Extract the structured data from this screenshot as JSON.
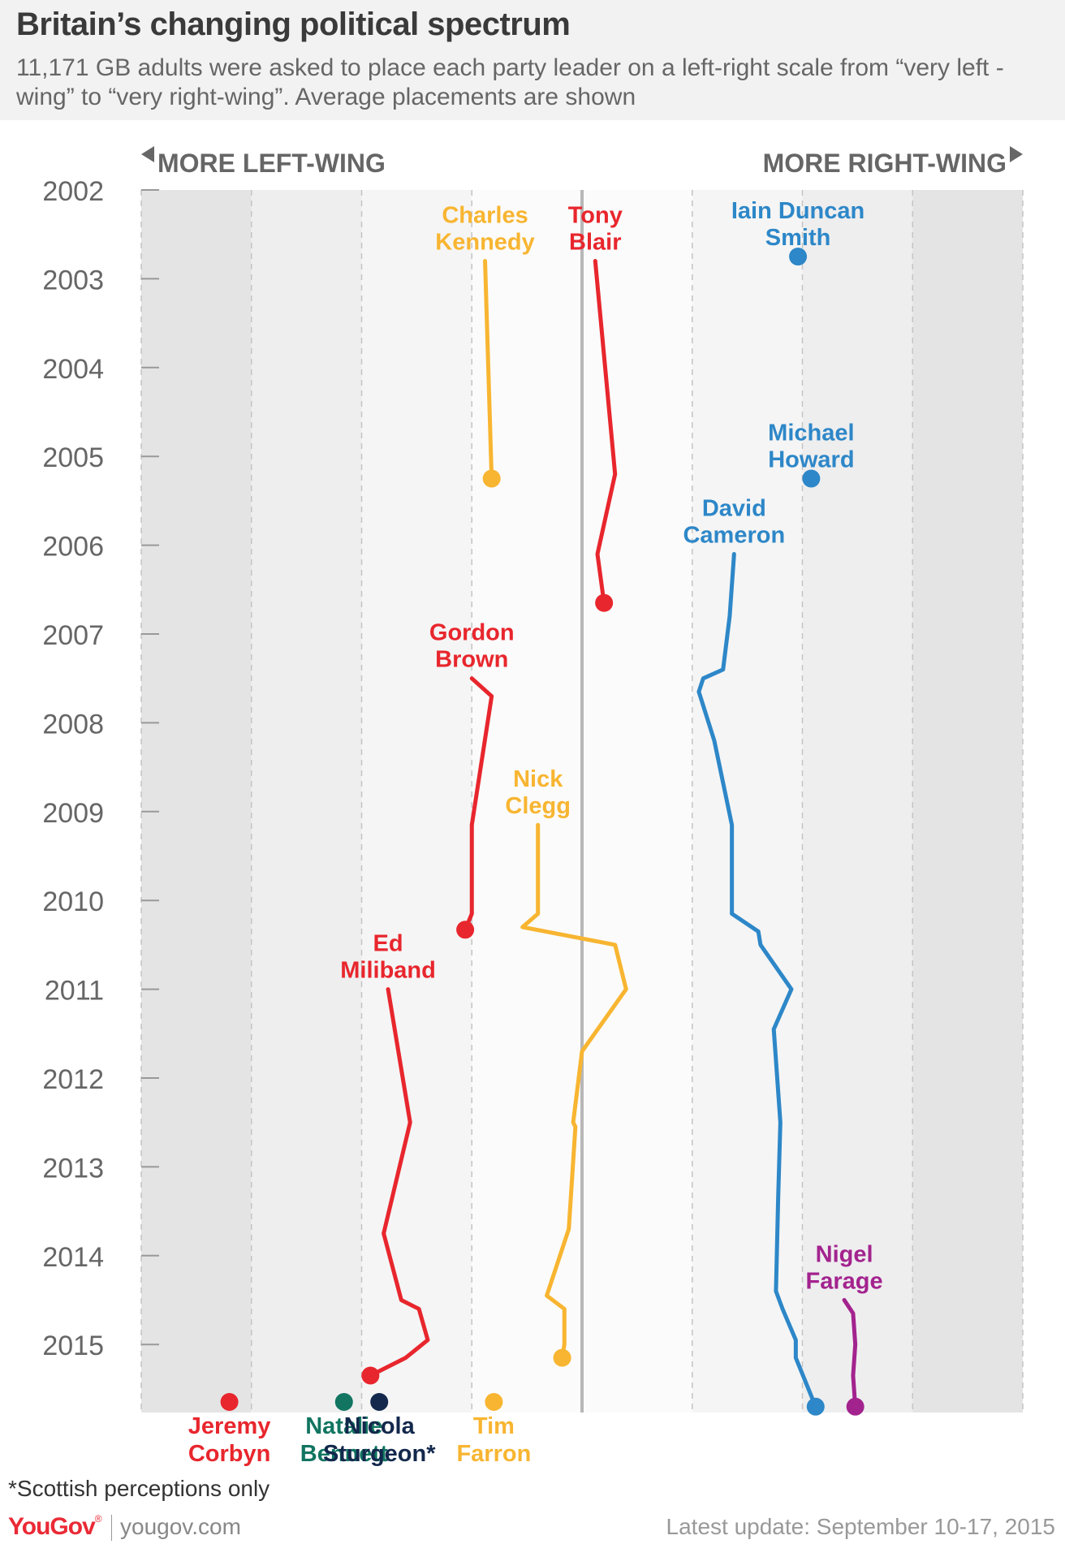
{
  "header": {
    "title": "Britain’s changing political spectrum",
    "subtitle": "11,171 GB adults were asked to place each party leader on a left-right scale from “very left -wing” to “very right-wing”. Average placements are shown"
  },
  "chart_data": {
    "type": "line",
    "left_label": "MORE LEFT-WING",
    "right_label": "MORE RIGHT-WING",
    "y_ticks": [
      "2002",
      "2003",
      "2004",
      "2005",
      "2006",
      "2007",
      "2008",
      "2009",
      "2010",
      "2011",
      "2012",
      "2013",
      "2014",
      "2015"
    ],
    "y_range": [
      2002,
      2015.8
    ],
    "x_range": [
      -100,
      100
    ],
    "x_unit": "left-right score (-100 = very left-wing, 0 = centre, 100 = very right-wing), estimated",
    "series": [
      {
        "name": "Tony Blair",
        "label_lines": [
          "Tony",
          "Blair"
        ],
        "color": "#e8262d",
        "points": [
          [
            3,
            2002.8
          ],
          [
            7.5,
            2005.2
          ],
          [
            3.5,
            2006.1
          ],
          [
            5,
            2006.65
          ]
        ]
      },
      {
        "name": "Charles Kennedy",
        "label_lines": [
          "Charles",
          "Kennedy"
        ],
        "color": "#f8b531",
        "points": [
          [
            -22,
            2002.8
          ],
          [
            -20.5,
            2005.25
          ]
        ]
      },
      {
        "name": "Iain Duncan Smith",
        "label_lines": [
          "Iain Duncan",
          "Smith"
        ],
        "color": "#2d87c8",
        "points": [
          [
            49,
            2002.75
          ]
        ]
      },
      {
        "name": "Michael Howard",
        "label_lines": [
          "Michael",
          "Howard"
        ],
        "color": "#2d87c8",
        "points": [
          [
            52,
            2005.25
          ]
        ]
      },
      {
        "name": "David Cameron",
        "label_lines": [
          "David",
          "Cameron"
        ],
        "color": "#2d87c8",
        "points": [
          [
            34.5,
            2006.1
          ],
          [
            33.5,
            2006.8
          ],
          [
            32,
            2007.4
          ],
          [
            27.5,
            2007.5
          ],
          [
            26.5,
            2007.65
          ],
          [
            30,
            2008.2
          ],
          [
            34,
            2009.15
          ],
          [
            34,
            2010.15
          ],
          [
            40,
            2010.35
          ],
          [
            40.5,
            2010.5
          ],
          [
            47.5,
            2011
          ],
          [
            43.5,
            2011.45
          ],
          [
            45,
            2012.5
          ],
          [
            44.5,
            2013.35
          ],
          [
            44,
            2014.4
          ],
          [
            45.5,
            2014.6
          ],
          [
            48.5,
            2014.95
          ],
          [
            48.5,
            2015.15
          ],
          [
            53,
            2015.7
          ]
        ]
      },
      {
        "name": "Gordon Brown",
        "label_lines": [
          "Gordon",
          "Brown"
        ],
        "color": "#e8262d",
        "points": [
          [
            -25,
            2007.5
          ],
          [
            -20.5,
            2007.7
          ],
          [
            -25,
            2009.15
          ],
          [
            -25,
            2010.15
          ],
          [
            -26.5,
            2010.33
          ]
        ]
      },
      {
        "name": "Nick Clegg",
        "label_lines": [
          "Nick",
          "Clegg"
        ],
        "color": "#f8b531",
        "points": [
          [
            -10,
            2009.15
          ],
          [
            -10,
            2010.15
          ],
          [
            -13.5,
            2010.3
          ],
          [
            7.5,
            2010.5
          ],
          [
            10,
            2011
          ],
          [
            0,
            2011.7
          ],
          [
            -2,
            2012.5
          ],
          [
            -1.5,
            2012.55
          ],
          [
            -3,
            2013.7
          ],
          [
            -8,
            2014.45
          ],
          [
            -4,
            2014.6
          ],
          [
            -4,
            2015
          ],
          [
            -4.5,
            2015.15
          ]
        ]
      },
      {
        "name": "Ed Miliband",
        "label_lines": [
          "Ed",
          "Miliband"
        ],
        "color": "#e8262d",
        "points": [
          [
            -44,
            2011
          ],
          [
            -39,
            2012.5
          ],
          [
            -45,
            2013.75
          ],
          [
            -41,
            2014.5
          ],
          [
            -37,
            2014.6
          ],
          [
            -35,
            2014.95
          ],
          [
            -40,
            2015.15
          ],
          [
            -48,
            2015.35
          ]
        ]
      },
      {
        "name": "Nigel Farage",
        "label_lines": [
          "Nigel",
          "Farage"
        ],
        "color": "#a3238e",
        "points": [
          [
            59.5,
            2014.5
          ],
          [
            61.5,
            2014.65
          ],
          [
            62,
            2015
          ],
          [
            61.5,
            2015.35
          ],
          [
            62,
            2015.7
          ]
        ]
      }
    ],
    "current_leaders": [
      {
        "name": "Jeremy Corbyn",
        "label_lines": [
          "Jeremy",
          "Corbyn"
        ],
        "color": "#e8262d",
        "value": -80
      },
      {
        "name": "Natalie Bennett",
        "label_lines": [
          "Natalie",
          "Bennett"
        ],
        "color": "#117561",
        "value": -54
      },
      {
        "name": "Nicola Sturgeon*",
        "label_lines": [
          "Nicola",
          "Sturgeon*"
        ],
        "color": "#13284c",
        "value": -46
      },
      {
        "name": "Tim Farron",
        "label_lines": [
          "Tim",
          "Farron"
        ],
        "color": "#f8b531",
        "value": -20
      }
    ],
    "bands": {
      "colors": [
        "#e4e4e5",
        "#eeeeef",
        "#f5f5f5",
        "#fbfbfb",
        "#fbfbfb",
        "#f5f5f5",
        "#eeeeef",
        "#e4e4e5"
      ]
    }
  },
  "footnote": "*Scottish perceptions only",
  "footer": {
    "logo": "YouGov",
    "logo_mark": "®",
    "site": "yougov.com",
    "update": "Latest update: September 10-17, 2015"
  }
}
